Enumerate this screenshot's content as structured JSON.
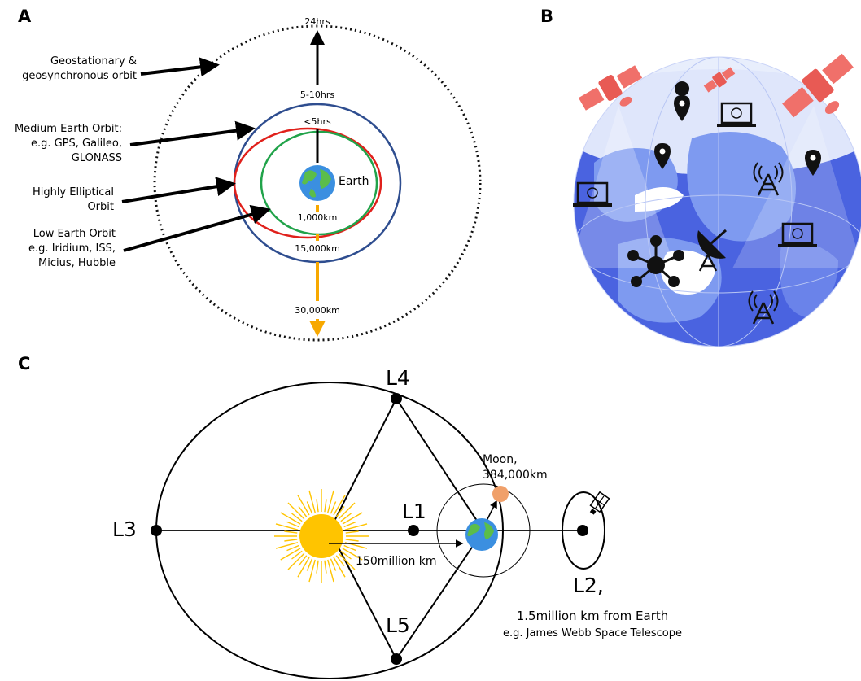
{
  "panels": {
    "a": "A",
    "b": "B",
    "c": "C"
  },
  "panel_a": {
    "orbit_labels": {
      "geo_line1": "Geostationary &",
      "geo_line2": "geosynchronous orbit",
      "meo_line1": "Medium Earth Orbit:",
      "meo_line2": "e.g. GPS, Galileo,",
      "meo_line3": "GLONASS",
      "heo_line1": "Highly Elliptical",
      "heo_line2": "Orbit",
      "leo_line1": "Low Earth Orbit",
      "leo_line2": "e.g. Iridium, ISS,",
      "leo_line3": "Micius, Hubble"
    },
    "periods": {
      "geo": "24hrs",
      "meo": "5-10hrs",
      "leo": "<5hrs"
    },
    "distances": {
      "leo": "1,000km",
      "meo": "15,000km",
      "geo": "30,000km"
    },
    "earth_label": "Earth",
    "colors": {
      "geo": "#111111",
      "meo": "#2e4d8f",
      "heo": "#e0201b",
      "leo": "#21a34a",
      "distance_arrow": "#f7a800"
    }
  },
  "panel_b": {
    "icons": [
      "satellite-icon",
      "location-pin-icon",
      "laptop-icon",
      "radio-tower-icon",
      "network-hub-icon",
      "satellite-dish-icon"
    ],
    "colors": {
      "ocean": "#4a63e0",
      "land": "#7e9af0",
      "satellite": "#f0706a"
    }
  },
  "panel_c": {
    "points": {
      "l1": "L1",
      "l2": "L2,",
      "l3": "L3",
      "l4": "L4",
      "l5": "L5"
    },
    "moon_line1": "Moon,",
    "moon_line2": "384,000km",
    "sun_earth_distance": "150million km",
    "l2_line1": "1.5million km from Earth",
    "l2_line2": "e.g. James Webb Space Telescope",
    "colors": {
      "sun": "#ffc400",
      "moon": "#f0a06a"
    }
  }
}
